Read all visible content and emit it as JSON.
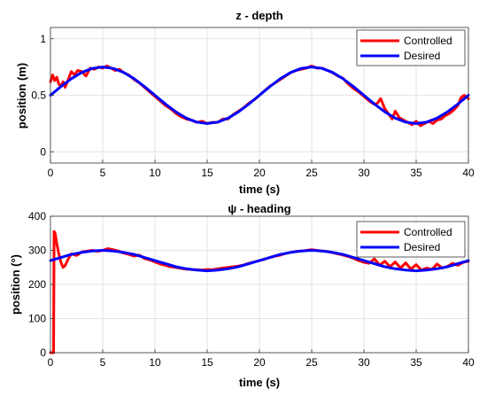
{
  "colors": {
    "controlled": "#ff0000",
    "desired": "#0000ff"
  },
  "chart_data": [
    {
      "type": "line",
      "title": "z - depth",
      "xlabel": "time (s)",
      "ylabel": "position (m)",
      "xlim": [
        0,
        40
      ],
      "ylim": [
        -0.1,
        1.1
      ],
      "xticks": [
        0,
        5,
        10,
        15,
        20,
        25,
        30,
        35,
        40
      ],
      "yticks": [
        0,
        0.5,
        1
      ],
      "xtick_labels": [
        "0",
        "5",
        "10",
        "15",
        "20",
        "25",
        "30",
        "35",
        "40"
      ],
      "ytick_labels": [
        "0",
        "0.5",
        "1"
      ],
      "grid": true,
      "legend_position": "top-right",
      "series": [
        {
          "name": "Controlled",
          "color": "#ff0000",
          "x": [
            0,
            0.2,
            0.4,
            0.6,
            0.8,
            1.0,
            1.2,
            1.4,
            1.7,
            2.0,
            2.3,
            2.6,
            3.0,
            3.4,
            3.8,
            4.2,
            4.6,
            5.0,
            5.4,
            5.8,
            6.2,
            6.6,
            7.0,
            7.5,
            8.0,
            8.5,
            9.0,
            9.5,
            10.0,
            10.5,
            11.0,
            11.5,
            12.0,
            12.5,
            13.0,
            13.5,
            14.0,
            14.5,
            15.0,
            15.5,
            16.0,
            16.5,
            17.0,
            17.5,
            18.0,
            18.5,
            19.0,
            19.5,
            20.0,
            20.5,
            21.0,
            21.5,
            22.0,
            22.5,
            23.0,
            23.5,
            24.0,
            24.5,
            25.0,
            25.5,
            26.0,
            26.5,
            27.0,
            27.5,
            28.0,
            28.5,
            29.0,
            29.5,
            30.0,
            30.5,
            31.0,
            31.3,
            31.6,
            32.0,
            32.4,
            32.7,
            33.0,
            33.4,
            33.8,
            34.2,
            34.6,
            35.0,
            35.4,
            35.8,
            36.2,
            36.6,
            37.0,
            37.4,
            37.8,
            38.2,
            38.6,
            39.0,
            39.3,
            39.6,
            40.0
          ],
          "y": [
            0.62,
            0.68,
            0.63,
            0.66,
            0.6,
            0.58,
            0.62,
            0.57,
            0.64,
            0.71,
            0.68,
            0.72,
            0.71,
            0.67,
            0.74,
            0.73,
            0.75,
            0.74,
            0.76,
            0.74,
            0.72,
            0.73,
            0.7,
            0.68,
            0.64,
            0.61,
            0.57,
            0.53,
            0.49,
            0.45,
            0.41,
            0.38,
            0.34,
            0.31,
            0.29,
            0.28,
            0.26,
            0.27,
            0.25,
            0.26,
            0.26,
            0.29,
            0.29,
            0.33,
            0.36,
            0.39,
            0.43,
            0.46,
            0.5,
            0.54,
            0.58,
            0.61,
            0.64,
            0.67,
            0.7,
            0.72,
            0.73,
            0.74,
            0.76,
            0.74,
            0.74,
            0.72,
            0.7,
            0.67,
            0.65,
            0.6,
            0.56,
            0.53,
            0.49,
            0.45,
            0.42,
            0.43,
            0.47,
            0.38,
            0.33,
            0.29,
            0.36,
            0.3,
            0.28,
            0.26,
            0.24,
            0.27,
            0.23,
            0.25,
            0.27,
            0.25,
            0.28,
            0.29,
            0.32,
            0.34,
            0.37,
            0.41,
            0.48,
            0.5,
            0.47
          ]
        },
        {
          "name": "Desired",
          "color": "#0000ff",
          "x": [
            0,
            1,
            2,
            3,
            4,
            5,
            6,
            7,
            8,
            9,
            10,
            11,
            12,
            13,
            14,
            15,
            16,
            17,
            18,
            19,
            20,
            21,
            22,
            23,
            24,
            25,
            26,
            27,
            28,
            29,
            30,
            31,
            32,
            33,
            34,
            35,
            36,
            37,
            38,
            39,
            40
          ],
          "y": [
            0.5,
            0.577,
            0.647,
            0.702,
            0.738,
            0.75,
            0.738,
            0.702,
            0.647,
            0.577,
            0.5,
            0.423,
            0.353,
            0.298,
            0.262,
            0.25,
            0.262,
            0.298,
            0.353,
            0.423,
            0.5,
            0.577,
            0.647,
            0.702,
            0.738,
            0.75,
            0.738,
            0.702,
            0.647,
            0.577,
            0.5,
            0.423,
            0.353,
            0.298,
            0.262,
            0.25,
            0.262,
            0.298,
            0.353,
            0.423,
            0.5
          ]
        }
      ]
    },
    {
      "type": "line",
      "title": "ψ - heading",
      "xlabel": "time (s)",
      "ylabel": "position (°)",
      "xlim": [
        0,
        40
      ],
      "ylim": [
        0,
        400
      ],
      "xticks": [
        0,
        5,
        10,
        15,
        20,
        25,
        30,
        35,
        40
      ],
      "yticks": [
        0,
        100,
        200,
        300,
        400
      ],
      "xtick_labels": [
        "0",
        "5",
        "10",
        "15",
        "20",
        "25",
        "30",
        "35",
        "40"
      ],
      "ytick_labels": [
        "0",
        "100",
        "200",
        "300",
        "400"
      ],
      "grid": true,
      "legend_position": "top-right",
      "series": [
        {
          "name": "Controlled",
          "color": "#ff0000",
          "x": [
            0,
            0.3,
            0.35,
            0.45,
            0.6,
            0.8,
            1.0,
            1.2,
            1.4,
            1.7,
            2.0,
            2.5,
            3.0,
            3.5,
            4.0,
            4.5,
            5.0,
            5.5,
            6.0,
            6.5,
            7.0,
            7.5,
            8.0,
            8.5,
            9.0,
            9.5,
            10.0,
            10.5,
            11.0,
            11.5,
            12.0,
            12.5,
            13.0,
            13.5,
            14.0,
            14.5,
            15.0,
            15.5,
            16.0,
            16.5,
            17.0,
            17.5,
            18.0,
            18.5,
            19.0,
            19.5,
            20.0,
            20.5,
            21.0,
            21.5,
            22.0,
            22.5,
            23.0,
            23.5,
            24.0,
            24.5,
            25.0,
            25.5,
            26.0,
            26.5,
            27.0,
            27.5,
            28.0,
            28.5,
            29.0,
            29.5,
            30.0,
            30.5,
            31.0,
            31.5,
            32.0,
            32.5,
            33.0,
            33.5,
            34.0,
            34.5,
            35.0,
            35.5,
            36.0,
            36.5,
            37.0,
            37.5,
            38.0,
            38.5,
            39.0,
            39.5,
            40.0
          ],
          "y": [
            0,
            0,
            355,
            350,
            320,
            290,
            265,
            250,
            255,
            275,
            290,
            285,
            295,
            298,
            300,
            297,
            300,
            305,
            302,
            298,
            292,
            288,
            283,
            286,
            276,
            272,
            266,
            260,
            256,
            252,
            250,
            247,
            245,
            244,
            243,
            242,
            244,
            243,
            246,
            248,
            250,
            252,
            254,
            257,
            262,
            266,
            270,
            274,
            279,
            283,
            286,
            291,
            294,
            297,
            298,
            300,
            302,
            300,
            298,
            297,
            293,
            290,
            286,
            282,
            277,
            270,
            265,
            262,
            275,
            257,
            268,
            252,
            266,
            248,
            263,
            245,
            258,
            242,
            248,
            244,
            260,
            248,
            253,
            262,
            256,
            265,
            268
          ]
        },
        {
          "name": "Desired",
          "color": "#0000ff",
          "x": [
            0,
            1,
            2,
            3,
            4,
            5,
            6,
            7,
            8,
            9,
            10,
            11,
            12,
            13,
            14,
            15,
            16,
            17,
            18,
            19,
            20,
            21,
            22,
            23,
            24,
            25,
            26,
            27,
            28,
            29,
            30,
            31,
            32,
            33,
            34,
            35,
            36,
            37,
            38,
            39,
            40
          ],
          "y": [
            270,
            279,
            288,
            294,
            298,
            300,
            298,
            294,
            288,
            279,
            270,
            261,
            252,
            246,
            242,
            240,
            242,
            246,
            252,
            261,
            270,
            279,
            288,
            294,
            298,
            300,
            298,
            294,
            288,
            279,
            270,
            261,
            252,
            246,
            242,
            240,
            242,
            246,
            252,
            261,
            270
          ]
        }
      ]
    }
  ]
}
